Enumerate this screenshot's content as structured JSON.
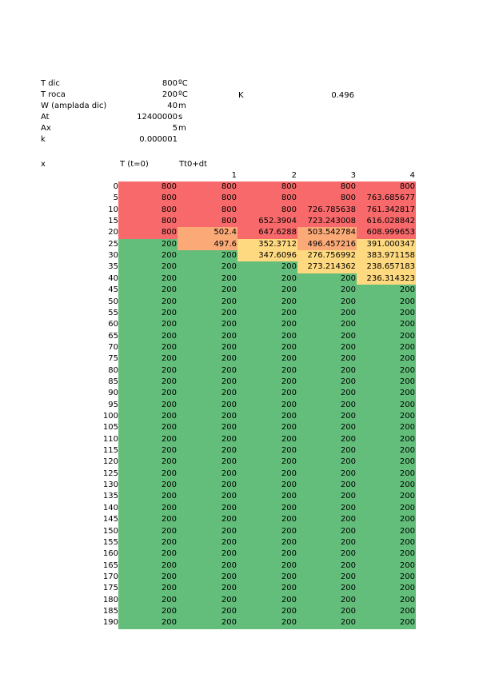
{
  "params": [
    {
      "label": "T dic",
      "value": "800",
      "unit": "ºC"
    },
    {
      "label": "T roca",
      "value": "200",
      "unit": "ºC"
    },
    {
      "label": "W  (amplada dic)",
      "value": "40",
      "unit": "m"
    },
    {
      "label": "At",
      "value": "12400000",
      "unit": "s"
    },
    {
      "label": "Ax",
      "value": "5",
      "unit": "m"
    },
    {
      "label": "k",
      "value": "0.000001",
      "unit": ""
    }
  ],
  "K": {
    "label": "K",
    "value": "0.496"
  },
  "table": {
    "row_header": "x",
    "col0_header": "T (t=0)",
    "col1_header": "Tt0+dt",
    "step_headers": [
      "1",
      "2",
      "3",
      "4"
    ],
    "x_values": [
      "0",
      "5",
      "10",
      "15",
      "20",
      "25",
      "30",
      "35",
      "40",
      "45",
      "50",
      "55",
      "60",
      "65",
      "70",
      "75",
      "80",
      "85",
      "90",
      "95",
      "100",
      "105",
      "110",
      "115",
      "120",
      "125",
      "130",
      "135",
      "140",
      "145",
      "150",
      "155",
      "160",
      "165",
      "170",
      "175",
      "180",
      "185",
      "190"
    ],
    "rows": [
      [
        "800",
        "800",
        "800",
        "800",
        "800"
      ],
      [
        "800",
        "800",
        "800",
        "800",
        "763.685677"
      ],
      [
        "800",
        "800",
        "800",
        "726.785638",
        "761.342817"
      ],
      [
        "800",
        "800",
        "652.3904",
        "723.243008",
        "616.028842"
      ],
      [
        "800",
        "502.4",
        "647.6288",
        "503.542784",
        "608.999653"
      ],
      [
        "200",
        "497.6",
        "352.3712",
        "496.457216",
        "391.000347"
      ],
      [
        "200",
        "200",
        "347.6096",
        "276.756992",
        "383.971158"
      ],
      [
        "200",
        "200",
        "200",
        "273.214362",
        "238.657183"
      ],
      [
        "200",
        "200",
        "200",
        "200",
        "236.314323"
      ]
    ],
    "fill_value": "200",
    "colors": {
      "red": "#f8696b",
      "orange": "#fbaa77",
      "yellow": "#fed980",
      "green": "#63be7b"
    }
  }
}
